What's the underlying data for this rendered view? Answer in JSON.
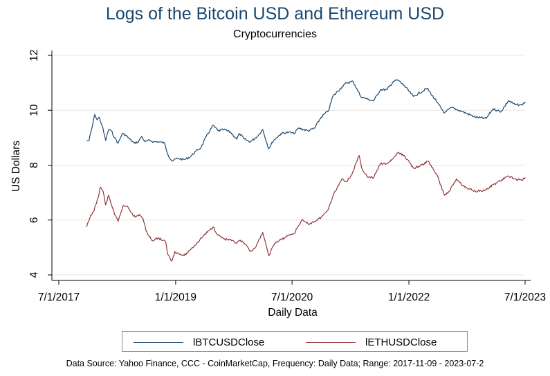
{
  "chart_data": {
    "type": "line",
    "title": "Logs of the Bitcoin USD and Ethereum USD",
    "subtitle": "Cryptocurrencies",
    "xlabel": "Daily Data",
    "ylabel": "US Dollars",
    "xlim": [
      "2017-07-01",
      "2023-07-01"
    ],
    "ylim": [
      4,
      12
    ],
    "x_ticks": [
      "2017-07-01",
      "2019-01-01",
      "2020-07-01",
      "2022-01-01",
      "2023-07-01"
    ],
    "x_tick_labels": [
      "7/1/2017",
      "1/1/2019",
      "7/1/2020",
      "1/1/2022",
      "7/1/2023"
    ],
    "y_ticks": [
      4,
      6,
      8,
      10,
      12
    ],
    "y_tick_labels": [
      "4",
      "6",
      "8",
      "10",
      "12"
    ],
    "grid": "horizontal",
    "legend_position": "bottom",
    "series": [
      {
        "name": "lBTCUSDClose",
        "color": "#1a476f",
        "points": [
          [
            "2017-11-09",
            8.9
          ],
          [
            "2017-11-20",
            8.9
          ],
          [
            "2017-12-05",
            9.4
          ],
          [
            "2017-12-17",
            9.85
          ],
          [
            "2017-12-28",
            9.65
          ],
          [
            "2018-01-06",
            9.75
          ],
          [
            "2018-01-20",
            9.45
          ],
          [
            "2018-02-06",
            8.9
          ],
          [
            "2018-02-20",
            9.3
          ],
          [
            "2018-03-05",
            9.25
          ],
          [
            "2018-03-20",
            9.0
          ],
          [
            "2018-04-06",
            8.8
          ],
          [
            "2018-04-25",
            9.15
          ],
          [
            "2018-05-10",
            9.1
          ],
          [
            "2018-05-30",
            8.95
          ],
          [
            "2018-06-20",
            8.8
          ],
          [
            "2018-07-10",
            8.85
          ],
          [
            "2018-07-25",
            9.05
          ],
          [
            "2018-08-10",
            8.85
          ],
          [
            "2018-09-01",
            8.9
          ],
          [
            "2018-09-20",
            8.85
          ],
          [
            "2018-10-15",
            8.85
          ],
          [
            "2018-11-10",
            8.8
          ],
          [
            "2018-11-25",
            8.4
          ],
          [
            "2018-12-15",
            8.15
          ],
          [
            "2019-01-10",
            8.25
          ],
          [
            "2019-02-10",
            8.2
          ],
          [
            "2019-03-10",
            8.3
          ],
          [
            "2019-04-05",
            8.5
          ],
          [
            "2019-05-01",
            8.65
          ],
          [
            "2019-05-25",
            9.05
          ],
          [
            "2019-06-26",
            9.45
          ],
          [
            "2019-07-20",
            9.25
          ],
          [
            "2019-08-15",
            9.3
          ],
          [
            "2019-09-15",
            9.2
          ],
          [
            "2019-10-15",
            8.95
          ],
          [
            "2019-10-28",
            9.15
          ],
          [
            "2019-11-20",
            8.95
          ],
          [
            "2019-12-18",
            8.85
          ],
          [
            "2020-01-20",
            9.05
          ],
          [
            "2020-02-14",
            9.3
          ],
          [
            "2020-03-13",
            8.6
          ],
          [
            "2020-04-05",
            8.9
          ],
          [
            "2020-05-10",
            9.15
          ],
          [
            "2020-06-15",
            9.2
          ],
          [
            "2020-07-10",
            9.15
          ],
          [
            "2020-08-01",
            9.35
          ],
          [
            "2020-09-15",
            9.25
          ],
          [
            "2020-10-15",
            9.35
          ],
          [
            "2020-11-15",
            9.75
          ],
          [
            "2020-12-20",
            10.0
          ],
          [
            "2021-01-08",
            10.5
          ],
          [
            "2021-02-20",
            10.85
          ],
          [
            "2021-03-15",
            11.0
          ],
          [
            "2021-04-14",
            11.05
          ],
          [
            "2021-05-20",
            10.5
          ],
          [
            "2021-06-22",
            10.4
          ],
          [
            "2021-07-20",
            10.35
          ],
          [
            "2021-08-20",
            10.75
          ],
          [
            "2021-09-20",
            10.75
          ],
          [
            "2021-10-20",
            11.05
          ],
          [
            "2021-11-10",
            11.1
          ],
          [
            "2021-12-10",
            10.9
          ],
          [
            "2022-01-22",
            10.5
          ],
          [
            "2022-03-28",
            10.8
          ],
          [
            "2022-05-12",
            10.3
          ],
          [
            "2022-06-18",
            9.9
          ],
          [
            "2022-07-20",
            10.1
          ],
          [
            "2022-09-10",
            9.95
          ],
          [
            "2022-11-09",
            9.75
          ],
          [
            "2022-12-30",
            9.7
          ],
          [
            "2023-01-31",
            10.05
          ],
          [
            "2023-03-10",
            9.95
          ],
          [
            "2023-04-14",
            10.35
          ],
          [
            "2023-05-15",
            10.2
          ],
          [
            "2023-06-15",
            10.2
          ],
          [
            "2023-07-02",
            10.3
          ]
        ]
      },
      {
        "name": "lETHUSDClose",
        "color": "#90353b",
        "points": [
          [
            "2017-11-09",
            5.75
          ],
          [
            "2017-11-25",
            6.1
          ],
          [
            "2017-12-10",
            6.3
          ],
          [
            "2017-12-25",
            6.6
          ],
          [
            "2018-01-13",
            7.2
          ],
          [
            "2018-01-25",
            7.05
          ],
          [
            "2018-02-06",
            6.55
          ],
          [
            "2018-02-20",
            6.9
          ],
          [
            "2018-03-20",
            6.2
          ],
          [
            "2018-04-06",
            5.95
          ],
          [
            "2018-04-28",
            6.5
          ],
          [
            "2018-05-20",
            6.5
          ],
          [
            "2018-06-10",
            6.25
          ],
          [
            "2018-06-25",
            6.1
          ],
          [
            "2018-07-15",
            6.2
          ],
          [
            "2018-08-01",
            6.05
          ],
          [
            "2018-08-15",
            5.6
          ],
          [
            "2018-09-12",
            5.25
          ],
          [
            "2018-10-10",
            5.35
          ],
          [
            "2018-11-15",
            5.2
          ],
          [
            "2018-11-25",
            4.75
          ],
          [
            "2018-12-14",
            4.5
          ],
          [
            "2018-12-28",
            4.85
          ],
          [
            "2019-01-20",
            4.75
          ],
          [
            "2019-02-10",
            4.7
          ],
          [
            "2019-03-15",
            4.95
          ],
          [
            "2019-04-10",
            5.15
          ],
          [
            "2019-05-15",
            5.45
          ],
          [
            "2019-06-26",
            5.75
          ],
          [
            "2019-07-20",
            5.45
          ],
          [
            "2019-08-20",
            5.3
          ],
          [
            "2019-09-20",
            5.25
          ],
          [
            "2019-10-15",
            5.15
          ],
          [
            "2019-10-28",
            5.25
          ],
          [
            "2019-11-20",
            5.15
          ],
          [
            "2019-12-18",
            4.85
          ],
          [
            "2020-01-15",
            5.05
          ],
          [
            "2020-02-14",
            5.55
          ],
          [
            "2020-03-13",
            4.7
          ],
          [
            "2020-04-10",
            5.15
          ],
          [
            "2020-05-15",
            5.3
          ],
          [
            "2020-06-15",
            5.45
          ],
          [
            "2020-07-10",
            5.5
          ],
          [
            "2020-08-01",
            5.8
          ],
          [
            "2020-08-15",
            6.0
          ],
          [
            "2020-09-15",
            5.85
          ],
          [
            "2020-10-15",
            5.95
          ],
          [
            "2020-11-15",
            6.1
          ],
          [
            "2020-12-15",
            6.35
          ],
          [
            "2021-01-10",
            6.9
          ],
          [
            "2021-02-20",
            7.5
          ],
          [
            "2021-03-15",
            7.4
          ],
          [
            "2021-04-10",
            7.7
          ],
          [
            "2021-05-12",
            8.35
          ],
          [
            "2021-05-24",
            7.9
          ],
          [
            "2021-06-22",
            7.55
          ],
          [
            "2021-07-20",
            7.55
          ],
          [
            "2021-08-20",
            8.05
          ],
          [
            "2021-09-20",
            8.05
          ],
          [
            "2021-10-20",
            8.25
          ],
          [
            "2021-11-10",
            8.45
          ],
          [
            "2021-12-10",
            8.35
          ],
          [
            "2022-01-22",
            7.9
          ],
          [
            "2022-02-20",
            7.95
          ],
          [
            "2022-04-02",
            8.15
          ],
          [
            "2022-05-12",
            7.65
          ],
          [
            "2022-06-18",
            6.9
          ],
          [
            "2022-07-10",
            7.05
          ],
          [
            "2022-08-13",
            7.5
          ],
          [
            "2022-09-20",
            7.2
          ],
          [
            "2022-11-09",
            7.05
          ],
          [
            "2022-12-30",
            7.1
          ],
          [
            "2023-02-15",
            7.35
          ],
          [
            "2023-04-14",
            7.6
          ],
          [
            "2023-05-15",
            7.5
          ],
          [
            "2023-06-15",
            7.45
          ],
          [
            "2023-07-02",
            7.55
          ]
        ]
      }
    ],
    "note": "Data Source: Yahoo Finance, CCC - CoinMarketCap, Frequency: Daily Data; Range: 2017-11-09 - 2023-07-2"
  }
}
